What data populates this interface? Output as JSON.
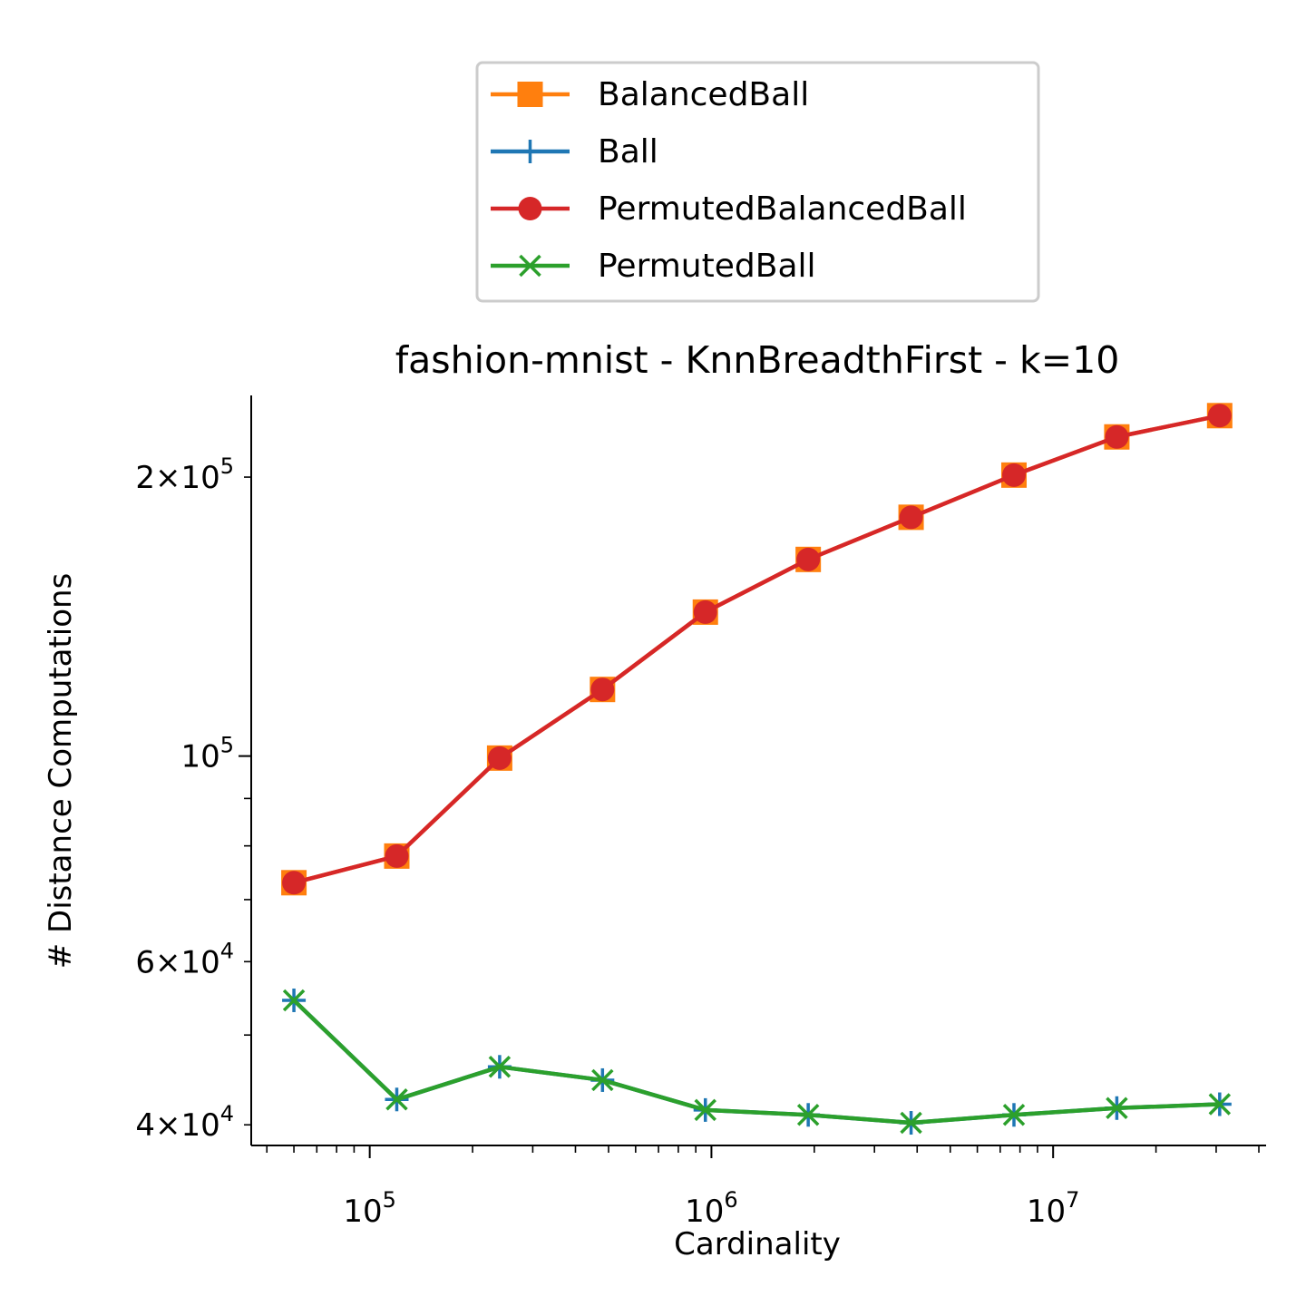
{
  "chart_data": {
    "type": "line",
    "title": "fashion-mnist - KnnBreadthFirst - k=10",
    "xlabel": "Cardinality",
    "ylabel": "# Distance Computations",
    "xscale": "log",
    "yscale": "log",
    "xlim": [
      45000,
      42000000
    ],
    "ylim": [
      38000,
      245000
    ],
    "grid": false,
    "legend_position": "above plot, centered",
    "x": [
      60000,
      120000,
      240000,
      480000,
      960000,
      1920000,
      3840000,
      7680000,
      15360000,
      30720000
    ],
    "x_major_ticks": [
      {
        "value": 100000,
        "base": "10",
        "exp": "5"
      },
      {
        "value": 1000000,
        "base": "10",
        "exp": "6"
      },
      {
        "value": 10000000,
        "base": "10",
        "exp": "7"
      }
    ],
    "y_ticks": [
      {
        "value": 200000,
        "mant": "2",
        "base": "10",
        "exp": "5"
      },
      {
        "value": 100000,
        "mant": "",
        "base": "10",
        "exp": "5"
      },
      {
        "value": 60000,
        "mant": "6",
        "base": "10",
        "exp": "4"
      },
      {
        "value": 40000,
        "mant": "4",
        "base": "10",
        "exp": "4"
      }
    ],
    "series": [
      {
        "name": "BalancedBall",
        "color": "#ff7f0e",
        "marker": "square",
        "values": [
          73000,
          78000,
          99500,
          118000,
          143000,
          163000,
          181000,
          201000,
          221000,
          233000
        ]
      },
      {
        "name": "Ball",
        "color": "#1f77b4",
        "marker": "plus",
        "values": [
          54500,
          42600,
          46200,
          44700,
          41500,
          41000,
          40200,
          41000,
          41700,
          42100
        ]
      },
      {
        "name": "PermutedBalancedBall",
        "color": "#d62728",
        "marker": "circle",
        "values": [
          73000,
          78000,
          99500,
          118000,
          143000,
          163000,
          181000,
          201000,
          221000,
          233000
        ]
      },
      {
        "name": "PermutedBall",
        "color": "#2ca02c",
        "marker": "x",
        "values": [
          54500,
          42600,
          46200,
          44700,
          41500,
          41000,
          40200,
          41000,
          41700,
          42100
        ]
      }
    ]
  }
}
